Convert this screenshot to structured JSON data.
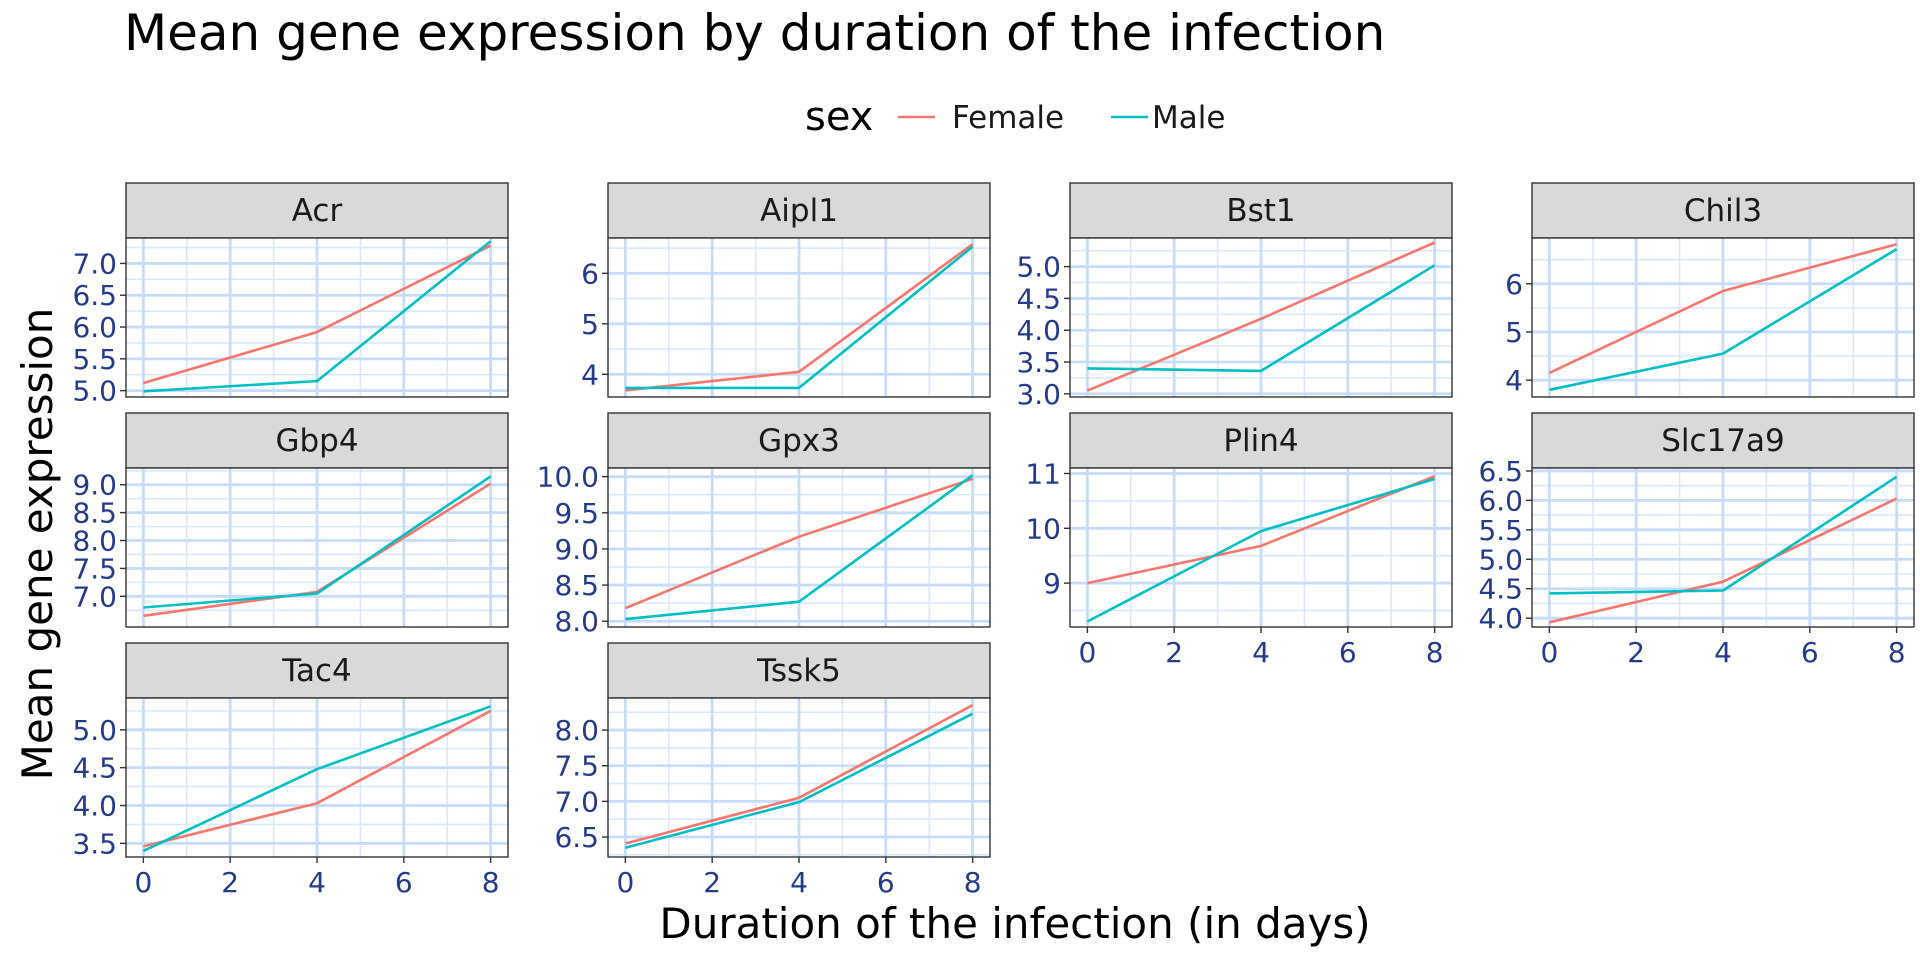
{
  "chart_data": {
    "type": "line",
    "title": "Mean gene expression by duration of the infection",
    "xlabel": "Duration of the infection (in days)",
    "ylabel": "Mean gene expression",
    "legend": {
      "title": "sex",
      "position": "top",
      "entries": [
        {
          "name": "Female",
          "color": "#F8766D"
        },
        {
          "name": "Male",
          "color": "#00BFC4"
        }
      ]
    },
    "x": [
      0,
      4,
      8
    ],
    "x_ticks": [
      0,
      2,
      4,
      6,
      8
    ],
    "xlim": [
      -0.4,
      8.4
    ],
    "grid": true,
    "panels": [
      {
        "name": "Acr",
        "ylim": [
          4.9,
          7.4
        ],
        "y_ticks": [
          5.0,
          5.5,
          6.0,
          6.5,
          7.0
        ],
        "y_tick_labels": [
          "5.0",
          "5.5",
          "6.0",
          "6.5",
          "7.0"
        ],
        "series": [
          {
            "name": "Female",
            "values": [
              5.12,
              5.92,
              7.28
            ]
          },
          {
            "name": "Male",
            "values": [
              4.99,
              5.15,
              7.35
            ]
          }
        ]
      },
      {
        "name": "Aipl1",
        "ylim": [
          3.55,
          6.7
        ],
        "y_ticks": [
          4,
          5,
          6
        ],
        "y_tick_labels": [
          "4",
          "5",
          "6"
        ],
        "series": [
          {
            "name": "Female",
            "values": [
              3.68,
              4.05,
              6.58
            ]
          },
          {
            "name": "Male",
            "values": [
              3.73,
              3.73,
              6.53
            ]
          }
        ]
      },
      {
        "name": "Bst1",
        "ylim": [
          2.95,
          5.45
        ],
        "y_ticks": [
          3.0,
          3.5,
          4.0,
          4.5,
          5.0
        ],
        "y_tick_labels": [
          "3.0",
          "3.5",
          "4.0",
          "4.5",
          "5.0"
        ],
        "series": [
          {
            "name": "Female",
            "values": [
              3.05,
              4.18,
              5.38
            ]
          },
          {
            "name": "Male",
            "values": [
              3.4,
              3.36,
              5.02
            ]
          }
        ]
      },
      {
        "name": "Chil3",
        "ylim": [
          3.65,
          6.95
        ],
        "y_ticks": [
          4,
          5,
          6
        ],
        "y_tick_labels": [
          "4",
          "5",
          "6"
        ],
        "series": [
          {
            "name": "Female",
            "values": [
              4.15,
              5.85,
              6.82
            ]
          },
          {
            "name": "Male",
            "values": [
              3.8,
              4.55,
              6.72
            ]
          }
        ]
      },
      {
        "name": "Gbp4",
        "ylim": [
          6.45,
          9.3
        ],
        "y_ticks": [
          7.0,
          7.5,
          8.0,
          8.5,
          9.0
        ],
        "y_tick_labels": [
          "7.0",
          "7.5",
          "8.0",
          "8.5",
          "9.0"
        ],
        "series": [
          {
            "name": "Female",
            "values": [
              6.65,
              7.08,
              9.02
            ]
          },
          {
            "name": "Male",
            "values": [
              6.8,
              7.05,
              9.15
            ]
          }
        ]
      },
      {
        "name": "Gpx3",
        "ylim": [
          7.92,
          10.12
        ],
        "y_ticks": [
          8.0,
          8.5,
          9.0,
          9.5,
          10.0
        ],
        "y_tick_labels": [
          "8.0",
          "8.5",
          "9.0",
          "9.5",
          "10.0"
        ],
        "series": [
          {
            "name": "Female",
            "values": [
              8.18,
              9.17,
              9.97
            ]
          },
          {
            "name": "Male",
            "values": [
              8.03,
              8.27,
              10.02
            ]
          }
        ]
      },
      {
        "name": "Plin4",
        "ylim": [
          8.2,
          11.1
        ],
        "y_ticks": [
          9,
          10,
          11
        ],
        "y_tick_labels": [
          "9",
          "10",
          "11"
        ],
        "series": [
          {
            "name": "Female",
            "values": [
              9.0,
              9.68,
              10.95
            ]
          },
          {
            "name": "Male",
            "values": [
              8.3,
              9.95,
              10.9
            ]
          }
        ]
      },
      {
        "name": "Slc17a9",
        "ylim": [
          3.85,
          6.55
        ],
        "y_ticks": [
          4.0,
          4.5,
          5.0,
          5.5,
          6.0,
          6.5
        ],
        "y_tick_labels": [
          "4.0",
          "4.5",
          "5.0",
          "5.5",
          "6.0",
          "6.5"
        ],
        "series": [
          {
            "name": "Female",
            "values": [
              3.93,
              4.62,
              6.03
            ]
          },
          {
            "name": "Male",
            "values": [
              4.42,
              4.47,
              6.4
            ]
          }
        ]
      },
      {
        "name": "Tac4",
        "ylim": [
          3.32,
          5.42
        ],
        "y_ticks": [
          3.5,
          4.0,
          4.5,
          5.0
        ],
        "y_tick_labels": [
          "3.5",
          "4.0",
          "4.5",
          "5.0"
        ],
        "series": [
          {
            "name": "Female",
            "values": [
              3.46,
              4.03,
              5.25
            ]
          },
          {
            "name": "Male",
            "values": [
              3.4,
              4.48,
              5.31
            ]
          }
        ]
      },
      {
        "name": "Tssk5",
        "ylim": [
          6.22,
          8.45
        ],
        "y_ticks": [
          6.5,
          7.0,
          7.5,
          8.0
        ],
        "y_tick_labels": [
          "6.5",
          "7.0",
          "7.5",
          "8.0"
        ],
        "series": [
          {
            "name": "Female",
            "values": [
              6.41,
              7.05,
              8.35
            ]
          },
          {
            "name": "Male",
            "values": [
              6.35,
              6.99,
              8.23
            ]
          }
        ]
      }
    ]
  }
}
